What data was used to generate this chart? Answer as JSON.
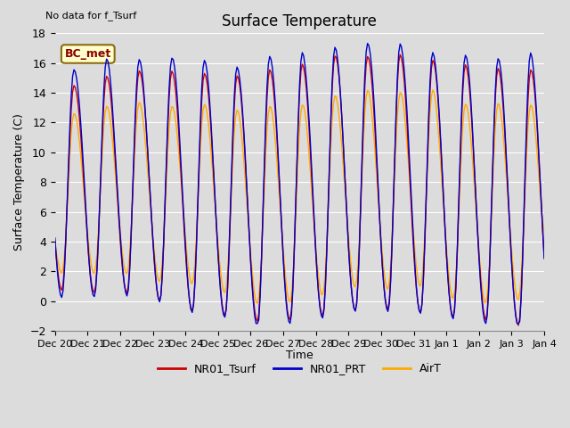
{
  "title": "Surface Temperature",
  "xlabel": "Time",
  "ylabel": "Surface Temperature (C)",
  "ylim": [
    -2,
    18
  ],
  "yticks": [
    -2,
    0,
    2,
    4,
    6,
    8,
    10,
    12,
    14,
    16,
    18
  ],
  "note": "No data for f_Tsurf",
  "bc_met_label": "BC_met",
  "series_labels": [
    "NR01_Tsurf",
    "NR01_PRT",
    "AirT"
  ],
  "series_colors": [
    "#cc0000",
    "#0000cc",
    "#ffaa00"
  ],
  "line_width": 1.0,
  "bg_color": "#dcdcdc",
  "plot_bg_color": "#dcdcdc",
  "fig_width": 6.4,
  "fig_height": 4.8,
  "dpi": 100
}
